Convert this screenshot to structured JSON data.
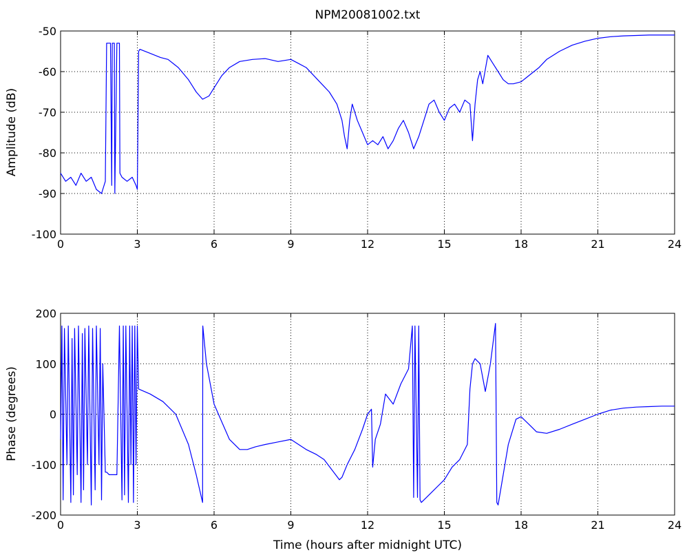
{
  "chart_data": [
    {
      "type": "line",
      "title": "NPM20081002.txt",
      "xlabel": "",
      "ylabel": "Amplitude (dB)",
      "xlim": [
        0,
        24
      ],
      "ylim": [
        -100,
        -50
      ],
      "xticks": [
        0,
        3,
        6,
        9,
        12,
        15,
        18,
        21,
        24
      ],
      "yticks": [
        -100,
        -90,
        -80,
        -70,
        -60,
        -50
      ],
      "grid": true,
      "series": [
        {
          "color": "#0000ff",
          "x": [
            0,
            0.2,
            0.4,
            0.6,
            0.8,
            1.0,
            1.2,
            1.4,
            1.6,
            1.75,
            1.8,
            1.82,
            1.95,
            2.0,
            2.02,
            2.1,
            2.12,
            2.2,
            2.25,
            2.3,
            2.32,
            2.4,
            2.6,
            2.8,
            2.95,
            3.0,
            3.05,
            3.1,
            3.5,
            3.9,
            4.2,
            4.6,
            5.0,
            5.3,
            5.55,
            5.8,
            6.0,
            6.3,
            6.6,
            7.0,
            7.5,
            8.0,
            8.5,
            9.0,
            9.3,
            9.6,
            9.9,
            10.2,
            10.5,
            10.8,
            11.0,
            11.1,
            11.2,
            11.3,
            11.4,
            11.6,
            11.8,
            12.0,
            12.2,
            12.4,
            12.6,
            12.8,
            13.0,
            13.2,
            13.4,
            13.6,
            13.8,
            14.0,
            14.2,
            14.4,
            14.6,
            14.8,
            15.0,
            15.2,
            15.4,
            15.6,
            15.8,
            16.0,
            16.1,
            16.2,
            16.3,
            16.4,
            16.5,
            16.7,
            16.9,
            17.1,
            17.3,
            17.5,
            17.7,
            18.0,
            18.3,
            18.7,
            19.0,
            19.5,
            20.0,
            20.5,
            21.0,
            21.5,
            22.0,
            22.5,
            23.0,
            23.5,
            24.0
          ],
          "y": [
            -85,
            -87,
            -86,
            -88,
            -85,
            -87,
            -86,
            -89,
            -90,
            -87,
            -53,
            -53,
            -53,
            -88,
            -53,
            -53,
            -90,
            -53,
            -53,
            -53,
            -85,
            -86,
            -87,
            -86,
            -88,
            -89,
            -55,
            -54.5,
            -55.5,
            -56.5,
            -57,
            -59,
            -62,
            -65,
            -66.8,
            -66,
            -64,
            -61,
            -59,
            -57.5,
            -57,
            -56.8,
            -57.5,
            -57,
            -58,
            -59,
            -61,
            -63,
            -65,
            -68,
            -72,
            -76,
            -79,
            -72,
            -68,
            -72,
            -75,
            -78,
            -77,
            -78,
            -76,
            -79,
            -77,
            -74,
            -72,
            -75,
            -79,
            -76,
            -72,
            -68,
            -67,
            -70,
            -72,
            -69,
            -68,
            -70,
            -67,
            -68,
            -77,
            -68,
            -62,
            -60,
            -63,
            -56,
            -58,
            -60,
            -62,
            -63,
            -63,
            -62.5,
            -61,
            -59,
            -57,
            -55,
            -53.5,
            -52.5,
            -51.8,
            -51.4,
            -51.2,
            -51.1,
            -51,
            -51,
            -51
          ]
        }
      ]
    },
    {
      "type": "line",
      "title": "",
      "xlabel": "Time (hours after midnight UTC)",
      "ylabel": "Phase (degrees)",
      "xlim": [
        0,
        24
      ],
      "ylim": [
        -200,
        200
      ],
      "xticks": [
        0,
        3,
        6,
        9,
        12,
        15,
        18,
        21,
        24
      ],
      "yticks": [
        -200,
        -100,
        0,
        100,
        200
      ],
      "grid": true,
      "series": [
        {
          "color": "#0000ff",
          "x": [
            0,
            0.05,
            0.1,
            0.15,
            0.25,
            0.3,
            0.4,
            0.45,
            0.5,
            0.55,
            0.65,
            0.7,
            0.8,
            0.85,
            0.9,
            0.95,
            1.05,
            1.1,
            1.2,
            1.25,
            1.35,
            1.4,
            1.5,
            1.55,
            1.6,
            1.65,
            1.75,
            1.8,
            1.9,
            2.0,
            2.1,
            2.2,
            2.3,
            2.4,
            2.45,
            2.5,
            2.55,
            2.65,
            2.7,
            2.75,
            2.8,
            2.85,
            2.9,
            2.95,
            3.0,
            3.05,
            3.5,
            4.0,
            4.5,
            5.0,
            5.3,
            5.55,
            5.56,
            5.7,
            6.0,
            6.3,
            6.6,
            7.0,
            7.3,
            7.6,
            8.0,
            8.5,
            9.0,
            9.3,
            9.6,
            10.0,
            10.3,
            10.6,
            10.9,
            11.0,
            11.2,
            11.5,
            11.8,
            12.0,
            12.15,
            12.2,
            12.3,
            12.5,
            12.7,
            13.0,
            13.3,
            13.6,
            13.75,
            13.8,
            13.85,
            13.95,
            14.0,
            14.05,
            14.1,
            14.3,
            14.6,
            15.0,
            15.3,
            15.6,
            15.9,
            16.0,
            16.1,
            16.2,
            16.4,
            16.6,
            16.8,
            17.0,
            17.05,
            17.1,
            17.3,
            17.5,
            17.8,
            18.0,
            18.3,
            18.6,
            19.0,
            19.5,
            20.0,
            20.5,
            21.0,
            21.5,
            22.0,
            22.5,
            23.0,
            23.5,
            24.0
          ],
          "y": [
            -50,
            175,
            -170,
            170,
            -100,
            175,
            -175,
            150,
            -160,
            170,
            -120,
            175,
            -175,
            160,
            -150,
            170,
            -100,
            175,
            -180,
            170,
            -150,
            175,
            -100,
            170,
            -170,
            100,
            -115,
            -115,
            -120,
            -120,
            -120,
            -120,
            175,
            -170,
            175,
            -160,
            175,
            -175,
            175,
            -100,
            175,
            -175,
            175,
            -100,
            175,
            50,
            40,
            25,
            0,
            -60,
            -120,
            -175,
            175,
            100,
            20,
            -15,
            -50,
            -70,
            -70,
            -65,
            -60,
            -55,
            -50,
            -60,
            -70,
            -80,
            -90,
            -110,
            -130,
            -125,
            -100,
            -70,
            -30,
            0,
            10,
            -105,
            -50,
            -20,
            40,
            20,
            60,
            90,
            175,
            -165,
            175,
            -165,
            175,
            -170,
            -175,
            -165,
            -150,
            -130,
            -105,
            -90,
            -60,
            50,
            100,
            110,
            100,
            45,
            100,
            180,
            -175,
            -180,
            -120,
            -60,
            -10,
            -5,
            -20,
            -35,
            -38,
            -30,
            -20,
            -10,
            0,
            8,
            12,
            14,
            15,
            16,
            16
          ]
        }
      ]
    }
  ]
}
